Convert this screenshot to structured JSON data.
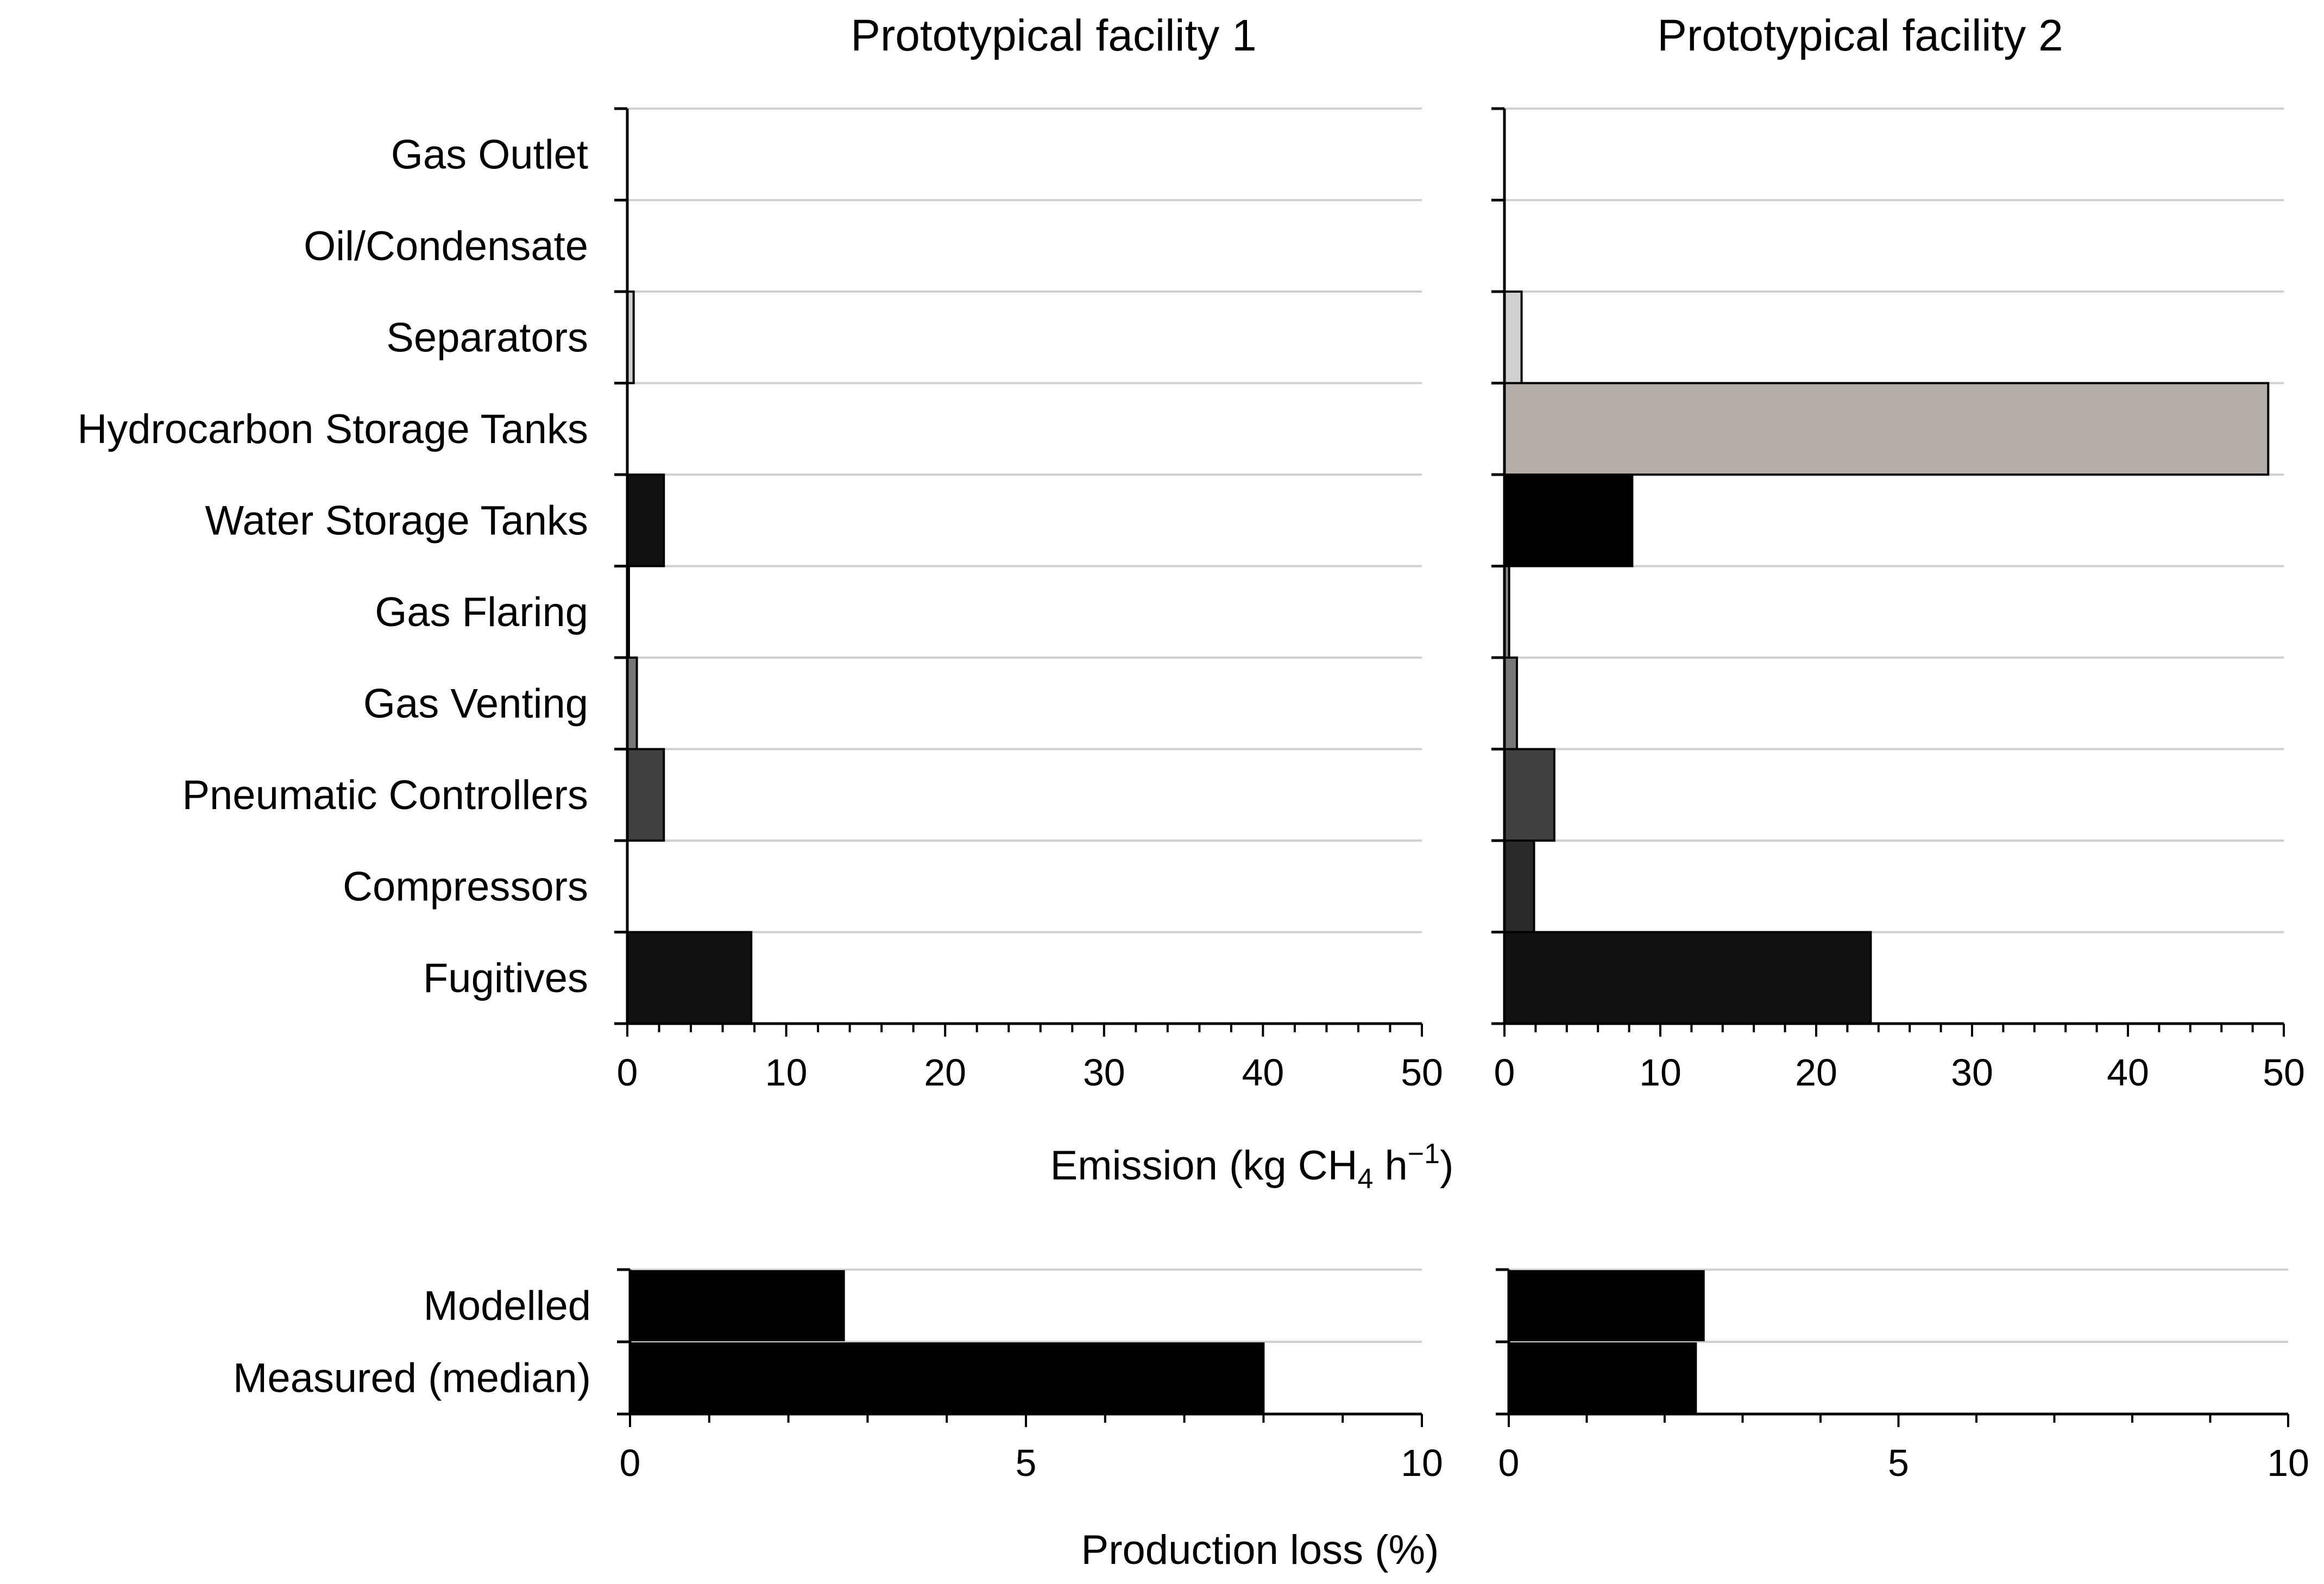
{
  "titles": [
    "Prototypical facility 1",
    "Prototypical facility 2"
  ],
  "emission_axis": {
    "label_main": "Emission (kg CH",
    "label_sub": "4",
    "label_mid": " h",
    "label_sup": "−1",
    "label_end": ")"
  },
  "production_axis": {
    "label": "Production loss (%)"
  },
  "chart_data": [
    {
      "type": "bar",
      "orientation": "horizontal",
      "panel": "Prototypical facility 1 - emissions",
      "title": "Prototypical facility 1",
      "categories": [
        "Gas Outlet",
        "Oil/Condensate",
        "Separators",
        "Hydrocarbon Storage Tanks",
        "Water Storage Tanks",
        "Gas Flaring",
        "Gas Venting",
        "Pneumatic Controllers",
        "Compressors",
        "Fugitives"
      ],
      "values": [
        0,
        0,
        0.4,
        0,
        2.3,
        0.1,
        0.6,
        2.3,
        0,
        7.8
      ],
      "colors": [
        "#ffffff",
        "#ffffff",
        "#d0d0d0",
        "#b3aeaa",
        "#111111",
        "#888888",
        "#777777",
        "#404040",
        "#2a2a2a",
        "#111111"
      ],
      "xlim": [
        0,
        50
      ],
      "xticks": [
        "0",
        "10",
        "20",
        "30",
        "40",
        "50"
      ],
      "xlabel": "Emission (kg CH4 h−1)",
      "grid": "horizontal"
    },
    {
      "type": "bar",
      "orientation": "horizontal",
      "panel": "Prototypical facility 2 - emissions",
      "title": "Prototypical facility 2",
      "categories": [
        "Gas Outlet",
        "Oil/Condensate",
        "Separators",
        "Hydrocarbon Storage Tanks",
        "Water Storage Tanks",
        "Gas Flaring",
        "Gas Venting",
        "Pneumatic Controllers",
        "Compressors",
        "Fugitives"
      ],
      "values": [
        0,
        0,
        1.1,
        49,
        8.2,
        0.3,
        0.8,
        3.2,
        1.9,
        23.5
      ],
      "colors": [
        "#ffffff",
        "#ffffff",
        "#d0d0d0",
        "#b3aeaa",
        "#000000",
        "#888888",
        "#777777",
        "#404040",
        "#2a2a2a",
        "#111111"
      ],
      "xlim": [
        0,
        50
      ],
      "xticks": [
        "0",
        "10",
        "20",
        "30",
        "40",
        "50"
      ],
      "xlabel": "Emission (kg CH4 h−1)",
      "grid": "horizontal"
    },
    {
      "type": "bar",
      "orientation": "horizontal",
      "panel": "Prototypical facility 1 - production loss",
      "categories": [
        "Modelled",
        "Measured (median)"
      ],
      "values": [
        2.7,
        8.0
      ],
      "xlim": [
        0,
        10
      ],
      "xticks": [
        "0",
        "5",
        "10"
      ],
      "xlabel": "Production loss (%)",
      "grid": "horizontal"
    },
    {
      "type": "bar",
      "orientation": "horizontal",
      "panel": "Prototypical facility 2 - production loss",
      "categories": [
        "Modelled",
        "Measured (median)"
      ],
      "values": [
        2.5,
        2.4
      ],
      "xlim": [
        0,
        10
      ],
      "xticks": [
        "0",
        "5",
        "10"
      ],
      "xlabel": "Production loss (%)",
      "grid": "horizontal"
    }
  ]
}
